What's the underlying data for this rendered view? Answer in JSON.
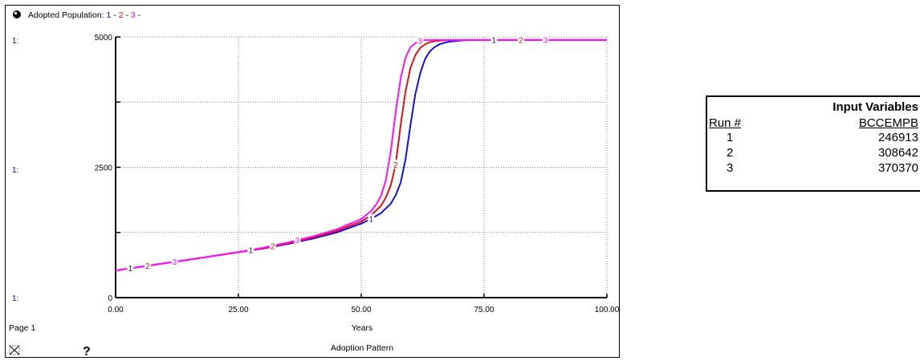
{
  "graph": {
    "title_prefix": "Adopted Population: ",
    "legend": [
      {
        "num": "1",
        "color": "#0000ff"
      },
      {
        "sep": " - "
      },
      {
        "num": "2",
        "color": "#ff0000"
      },
      {
        "sep": " - "
      },
      {
        "num": "3",
        "color": "#ff00ff"
      },
      {
        "sep": " -"
      }
    ],
    "axis_series_label": "1:",
    "page_label": "Page 1",
    "help_glyph": "?",
    "footer_title": "Adoption Pattern"
  },
  "chart_data": {
    "type": "line",
    "xlabel": "Years",
    "x_ticks": [
      "0.00",
      "25.00",
      "50.00",
      "75.00",
      "100.00"
    ],
    "y_ticks": [
      "0",
      "2500",
      "5000"
    ],
    "xlim": [
      0,
      100
    ],
    "ylim": [
      0,
      5000
    ],
    "grid": true,
    "series": [
      {
        "name": "1",
        "color": "#1010e0",
        "x": [
          0,
          5,
          10,
          15,
          20,
          25,
          30,
          35,
          40,
          45,
          50,
          52,
          54,
          56,
          57,
          58,
          59,
          60,
          61,
          62,
          63,
          64,
          65,
          66,
          67,
          68,
          70,
          72,
          75,
          80,
          90,
          100
        ],
        "y": [
          520,
          590,
          660,
          730,
          800,
          870,
          940,
          1030,
          1130,
          1250,
          1420,
          1510,
          1620,
          1800,
          1960,
          2200,
          2650,
          3300,
          3900,
          4300,
          4580,
          4730,
          4810,
          4860,
          4890,
          4910,
          4930,
          4940,
          4940,
          4940,
          4940,
          4940
        ],
        "markers_x": [
          3,
          27.5,
          52,
          77
        ]
      },
      {
        "name": "2",
        "color": "#e01010",
        "x": [
          0,
          5,
          10,
          15,
          20,
          25,
          30,
          35,
          40,
          45,
          50,
          52,
          54,
          55,
          56,
          57,
          58,
          59,
          60,
          61,
          62,
          63,
          64,
          65,
          66,
          68,
          70,
          72,
          75,
          80,
          90,
          100
        ],
        "y": [
          520,
          590,
          660,
          730,
          800,
          870,
          945,
          1040,
          1150,
          1280,
          1460,
          1580,
          1760,
          1920,
          2150,
          2550,
          3300,
          3950,
          4400,
          4650,
          4790,
          4860,
          4900,
          4920,
          4930,
          4940,
          4940,
          4940,
          4940,
          4940,
          4940,
          4940
        ],
        "markers_x": [
          6.5,
          32,
          57,
          82.5
        ]
      },
      {
        "name": "3",
        "color": "#ff10ff",
        "x": [
          0,
          5,
          10,
          15,
          20,
          25,
          30,
          35,
          40,
          45,
          50,
          52,
          53,
          54,
          55,
          56,
          57,
          58,
          59,
          60,
          61,
          62,
          63,
          64,
          65,
          67,
          70,
          75,
          80,
          90,
          100
        ],
        "y": [
          520,
          590,
          660,
          730,
          800,
          875,
          955,
          1055,
          1170,
          1310,
          1510,
          1660,
          1780,
          1950,
          2250,
          2800,
          3550,
          4200,
          4600,
          4800,
          4880,
          4920,
          4940,
          4940,
          4940,
          4940,
          4940,
          4940,
          4940,
          4940,
          4940
        ],
        "markers_x": [
          12,
          37,
          62,
          87.5
        ]
      }
    ]
  },
  "input_table": {
    "title": "Input Variables",
    "run_header": "Run #",
    "variable_header": "BCCEMPB",
    "rows": [
      {
        "run": "1",
        "value": "246913"
      },
      {
        "run": "2",
        "value": "308642"
      },
      {
        "run": "3",
        "value": "370370"
      }
    ]
  }
}
